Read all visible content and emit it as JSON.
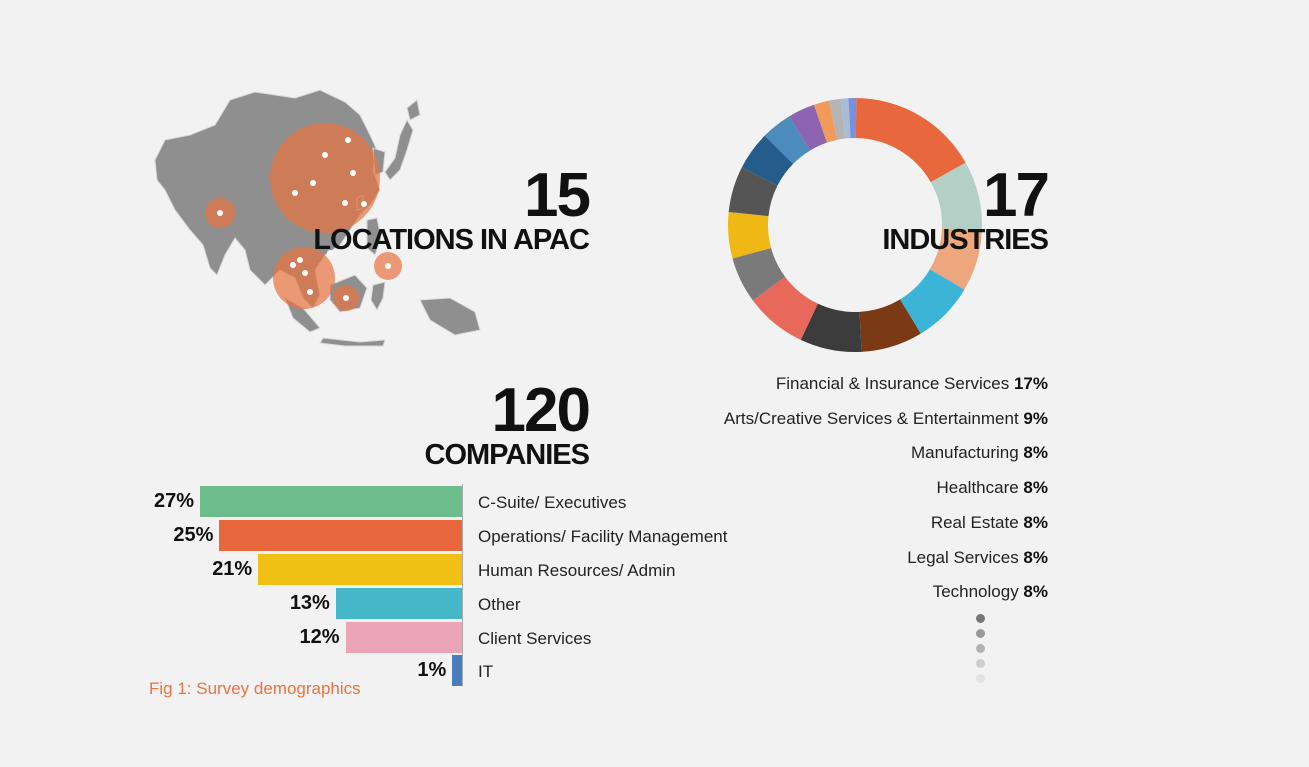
{
  "locations": {
    "number": "15",
    "label": "LOCATIONS IN APAC"
  },
  "industries": {
    "number": "17",
    "label": "INDUSTRIES"
  },
  "companies": {
    "number": "120",
    "label": "COMPANIES"
  },
  "caption": "Fig 1: Survey demographics",
  "colors": {
    "orange": "#e8673c",
    "map_gray": "#8c8c8c",
    "bubble": "#e8743f",
    "caption": "#e8743f"
  },
  "chart_data": [
    {
      "type": "pie",
      "variant": "donut",
      "slice_count": 17,
      "legend_rows": [
        {
          "name": "Financial & Insurance Services",
          "value_label": "17%",
          "value": 17
        },
        {
          "name": "Arts/Creative Services & Entertainment",
          "value_label": "9%",
          "value": 9
        },
        {
          "name": "Manufacturing",
          "value_label": "8%",
          "value": 8
        },
        {
          "name": "Healthcare",
          "value_label": "8%",
          "value": 8
        },
        {
          "name": "Real Estate",
          "value_label": "8%",
          "value": 8
        },
        {
          "name": "Legal Services",
          "value_label": "8%",
          "value": 8
        },
        {
          "name": "Technology",
          "value_label": "8%",
          "value": 8
        }
      ],
      "slices": [
        {
          "value": 17,
          "color": "#e8673c"
        },
        {
          "value": 9,
          "color": "#b4cfc6"
        },
        {
          "value": 8,
          "color": "#eea67c"
        },
        {
          "value": 8,
          "color": "#3cb4d8"
        },
        {
          "value": 8,
          "color": "#7a3a14"
        },
        {
          "value": 8,
          "color": "#3c3c3c"
        },
        {
          "value": 8,
          "color": "#e8685c"
        },
        {
          "value": 6,
          "color": "#7a7a7a"
        },
        {
          "value": 6,
          "color": "#f0b814"
        },
        {
          "value": 6,
          "color": "#555555"
        },
        {
          "value": 5,
          "color": "#245c8c"
        },
        {
          "value": 4,
          "color": "#4c8cbc"
        },
        {
          "value": 3.5,
          "color": "#8c64b0"
        },
        {
          "value": 2,
          "color": "#f09a5c"
        },
        {
          "value": 1.5,
          "color": "#b4b4b4"
        },
        {
          "value": 1,
          "color": "#a8bcd8"
        },
        {
          "value": 1,
          "color": "#7890e0"
        }
      ]
    },
    {
      "type": "bar",
      "orientation": "horizontal",
      "categories": [
        "C-Suite/ Executives",
        "Operations/ Facility Management",
        "Human Resources/ Admin",
        "Other",
        "Client Services",
        "IT"
      ],
      "values": [
        27,
        25,
        21,
        13,
        12,
        1
      ],
      "value_labels": [
        "27%",
        "25%",
        "21%",
        "13%",
        "12%",
        "1%"
      ],
      "colors": [
        "#6cbc8c",
        "#e8673c",
        "#f0c014",
        "#44b8c8",
        "#eca4b8",
        "#4c7cc0"
      ]
    }
  ]
}
